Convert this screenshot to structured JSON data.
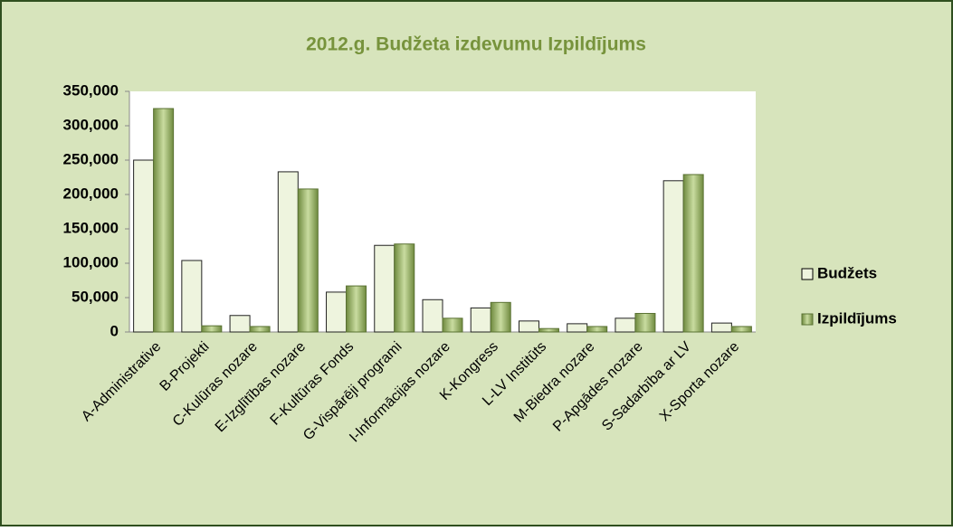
{
  "chart_data": {
    "type": "bar",
    "title": "2012.g. Budžeta  izdevumu Izpildījums",
    "categories": [
      "A-Administrative",
      "B-Projekti",
      "C-Kulūras nozare",
      "E-Izglītības nozare",
      "F-Kultūras Fonds",
      "G-Vispārēji programi",
      "I-Informācijas nozare",
      "K-Kongress",
      "L-LV Institūts",
      "M-Biedra nozare",
      "P-Apgādes nozare",
      "S-Sadarbība ar LV",
      "X-Sporta nozare"
    ],
    "series": [
      {
        "name": "Budžets",
        "color": "#eef4de",
        "values": [
          250000,
          104000,
          24000,
          233000,
          58000,
          126000,
          47000,
          35000,
          16000,
          12000,
          20000,
          220000,
          13000
        ]
      },
      {
        "name": "Izpildījums",
        "color": "#9bb56b",
        "values": [
          325000,
          9000,
          8000,
          208000,
          67000,
          128000,
          20000,
          43000,
          5000,
          8000,
          27000,
          229000,
          8000
        ]
      }
    ],
    "ylim": [
      0,
      350000
    ],
    "yticks": [
      0,
      {
        "value": 50000,
        "label": "50,000"
      },
      {
        "value": 100000,
        "label": "100,000"
      },
      {
        "value": 150000,
        "label": "150,000"
      },
      {
        "value": 200000,
        "label": "200,000"
      },
      {
        "value": 250000,
        "label": "250,000"
      },
      {
        "value": 300000,
        "label": "300,000"
      },
      {
        "value": 350000,
        "label": "350,000"
      }
    ],
    "legend": "right"
  }
}
